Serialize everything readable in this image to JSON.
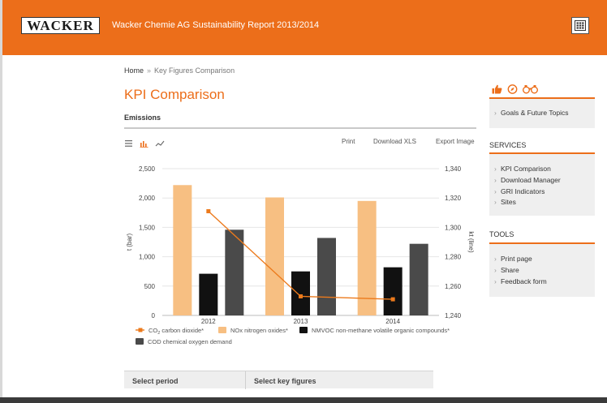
{
  "header": {
    "logo_text": "WACKER",
    "title": "Wacker Chemie AG Sustainability Report 2013/2014",
    "menu_icon": "grid-menu-icon"
  },
  "breadcrumb": {
    "home": "Home",
    "separator": "»",
    "current": "Key Figures Comparison"
  },
  "page": {
    "title": "KPI Comparison",
    "section": "Emissions"
  },
  "toolbar": {
    "views": [
      "list-view-icon",
      "bar-chart-icon",
      "line-chart-icon"
    ],
    "print": "Print",
    "download": "Download XLS",
    "export": "Export Image"
  },
  "chart_data": {
    "type": "bar",
    "categories": [
      "2012",
      "2013",
      "2014"
    ],
    "series": [
      {
        "name": "NOx nitrogen oxides*",
        "kind": "bar",
        "axis": "left",
        "values": [
          2220,
          2010,
          1950
        ],
        "color": "#f7bf82"
      },
      {
        "name": "NMVOC non-methane volatile organic compounds*",
        "kind": "bar",
        "axis": "left",
        "values": [
          710,
          750,
          820
        ],
        "color": "#111111"
      },
      {
        "name": "COD chemical oxygen demand",
        "kind": "bar",
        "axis": "left",
        "values": [
          1460,
          1320,
          1220
        ],
        "color": "#4a4a4a"
      },
      {
        "name_prefix": "CO",
        "name_sub": "2",
        "name_suffix": " carbon dioxide*",
        "kind": "line",
        "axis": "right",
        "values": [
          1311,
          1253,
          1251
        ],
        "color": "#ec7a1c"
      }
    ],
    "left_axis": {
      "label": "t (bar)",
      "min": 0,
      "max": 2500,
      "ticks": [
        "0",
        "500",
        "1,000",
        "1,500",
        "2,000",
        "2,500"
      ]
    },
    "right_axis": {
      "label": "kt (line)",
      "min": 1240,
      "max": 1340,
      "ticks": [
        "1,240",
        "1,260",
        "1,280",
        "1,300",
        "1,320",
        "1,340"
      ]
    },
    "legend_position": "bottom"
  },
  "period_bar": {
    "period": "Select period",
    "key_figures": "Select key figures"
  },
  "sidebar": {
    "social_icons": [
      "thumbs-up-icon",
      "compass-icon",
      "binoculars-icon"
    ],
    "topics": [
      "Goals & Future Topics"
    ],
    "services_heading": "SERVICES",
    "services": [
      "KPI Comparison",
      "Download Manager",
      "GRI Indicators",
      "Sites"
    ],
    "tools_heading": "TOOLS",
    "tools": [
      "Print page",
      "Share",
      "Feedback form"
    ]
  },
  "colors": {
    "brand": "#ec6e1a",
    "panel": "#efefef"
  }
}
